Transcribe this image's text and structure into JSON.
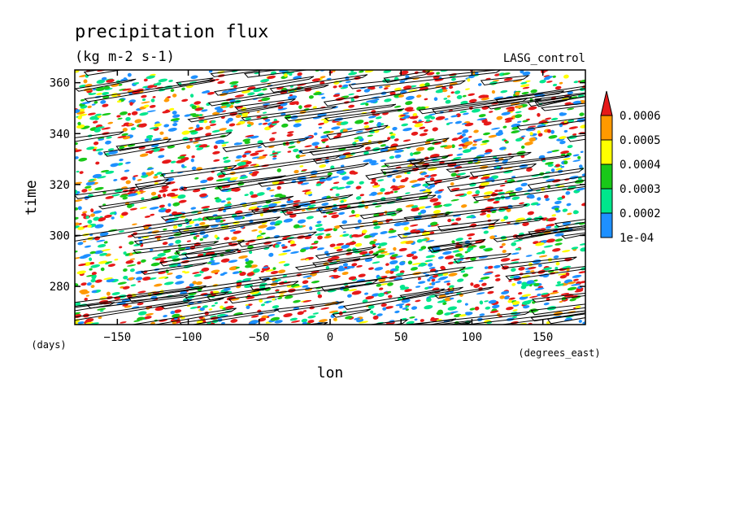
{
  "chart_data": {
    "type": "heatmap",
    "title": "precipitation flux",
    "subtitle": "(kg m-2 s-1)",
    "dataset_label": "LASG_control",
    "xlabel": "lon",
    "xunits": "(degrees_east)",
    "ylabel": "time",
    "yunits": "(days)",
    "xlim": [
      -180,
      180
    ],
    "ylim": [
      265,
      365
    ],
    "xticks": [
      -150,
      -100,
      -50,
      0,
      50,
      100,
      150
    ],
    "yticks": [
      280,
      300,
      320,
      340,
      360
    ],
    "grid": false,
    "colorbar": {
      "placement": "right",
      "levels": [
        "1e-04",
        "0.0002",
        "0.0003",
        "0.0004",
        "0.0005",
        "0.0006"
      ],
      "colors": [
        "#1e90ff",
        "#00e68c",
        "#19c819",
        "#ffff00",
        "#ff9900",
        "#e61919"
      ],
      "extend": "max"
    },
    "contour_lines": {
      "color": "#000000",
      "description_of_pattern": "eastward-propagating streaks"
    }
  }
}
